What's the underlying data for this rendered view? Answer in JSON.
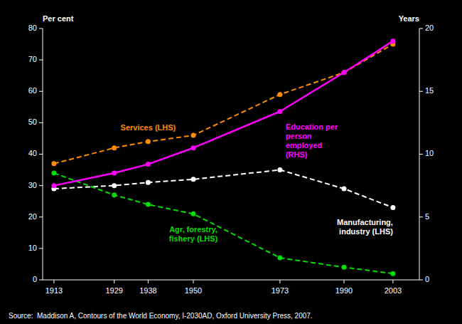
{
  "chart_data": {
    "type": "line",
    "x": [
      1913,
      1929,
      1938,
      1950,
      1973,
      1990,
      2003
    ],
    "xlim": [
      1910,
      2010
    ],
    "xticks": [
      1913,
      1929,
      1938,
      1950,
      1973,
      1990,
      2003
    ],
    "ylim": [
      0,
      80
    ],
    "yticks": [
      0,
      10,
      20,
      30,
      40,
      50,
      60,
      70,
      80
    ],
    "y2lim": [
      0,
      20
    ],
    "y2ticks": [
      0,
      5,
      10,
      15,
      20
    ],
    "ylabel": "Per cent",
    "y2label": "Years",
    "grid": false,
    "marker": "circle",
    "series": [
      {
        "name": "Services (LHS)",
        "color": "#FF8C00",
        "line_style": "dashed",
        "values": [
          37,
          42,
          44,
          46,
          59,
          66,
          75
        ]
      },
      {
        "name": "Manufacturing,\nindustry (LHS)",
        "color": "#FFFFFF",
        "line_style": "dashed",
        "values": [
          29,
          30,
          31,
          32,
          35,
          29,
          23
        ]
      },
      {
        "name": "Agr, forestry,\nfishery (LHS)",
        "color": "#00DD00",
        "line_style": "dashed",
        "values": [
          34,
          27,
          24,
          21,
          7,
          4,
          2
        ]
      },
      {
        "name": "Education per\nperson\nemployed\n(RHS)",
        "color": "#FF00FF",
        "line_style": "solid",
        "axis": "y2",
        "values": [
          7.5,
          8.5,
          9.2,
          10.5,
          13.4,
          16.5,
          19.0
        ]
      }
    ],
    "annotations": [
      "Source:  Maddison A, Contours of the World Economy, I-2030AD, Oxford University Press, 2007."
    ]
  }
}
